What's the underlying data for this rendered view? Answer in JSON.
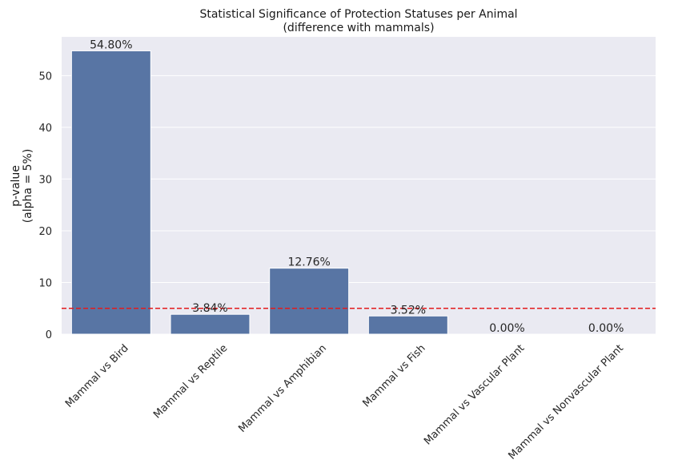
{
  "chart_data": {
    "type": "bar",
    "title": "Statistical Significance of Protection Statuses per Animal",
    "subtitle": "(difference with mammals)",
    "xlabel": "",
    "ylabel": "p-value",
    "ylabel_line2": "(alpha = 5%)",
    "categories": [
      "Mammal vs Bird",
      "Mammal vs Reptile",
      "Mammal vs Amphibian",
      "Mammal vs Fish",
      "Mammal vs Vascular Plant",
      "Mammal vs Nonvascular Plant"
    ],
    "values": [
      54.8,
      3.84,
      12.76,
      3.52,
      0.0,
      0.0
    ],
    "data_labels": [
      "54.80%",
      "3.84%",
      "12.76%",
      "3.52%",
      "0.00%",
      "0.00%"
    ],
    "yticks": [
      0,
      10,
      20,
      30,
      40,
      50
    ],
    "ylim": [
      0,
      57.5
    ],
    "threshold": 5,
    "grid": true,
    "colors": {
      "bar": "#5875a4",
      "threshold": "#e31a1c",
      "background": "#eaeaf2",
      "grid": "#ffffff"
    }
  }
}
